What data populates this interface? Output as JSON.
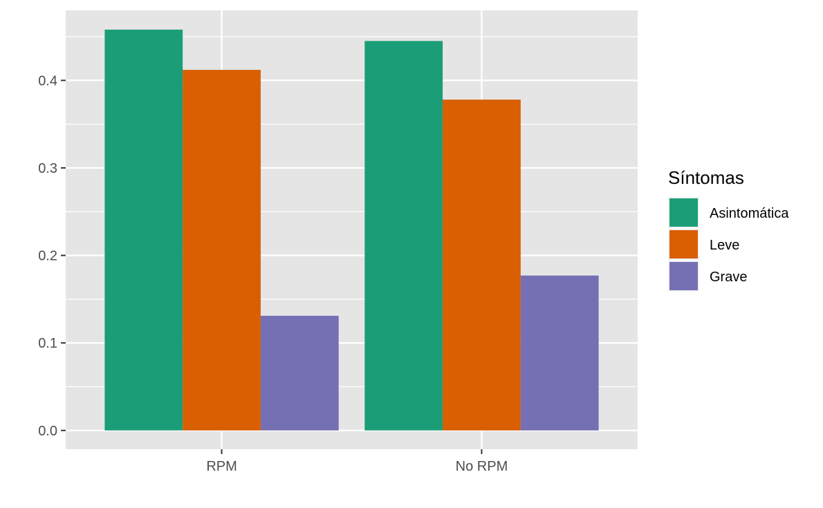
{
  "chart_data": {
    "type": "bar",
    "title": "",
    "xlabel": "",
    "ylabel": "",
    "categories": [
      "RPM",
      "No RPM"
    ],
    "series": [
      {
        "name": "Asintomática",
        "color": "#1B9E77",
        "values": [
          0.458,
          0.445
        ]
      },
      {
        "name": "Leve",
        "color": "#D95F02",
        "values": [
          0.412,
          0.378
        ]
      },
      {
        "name": "Grave",
        "color": "#7570B3",
        "values": [
          0.131,
          0.177
        ]
      }
    ],
    "ylim": [
      -0.0215,
      0.48
    ],
    "yticks": [
      "0.0",
      "0.1",
      "0.2",
      "0.3",
      "0.4"
    ],
    "ytick_values": [
      0,
      0.1,
      0.2,
      0.3,
      0.4
    ],
    "grid": true,
    "legend": {
      "title": "Síntomas",
      "position": "right"
    },
    "panel_background": "#E5E5E5"
  }
}
